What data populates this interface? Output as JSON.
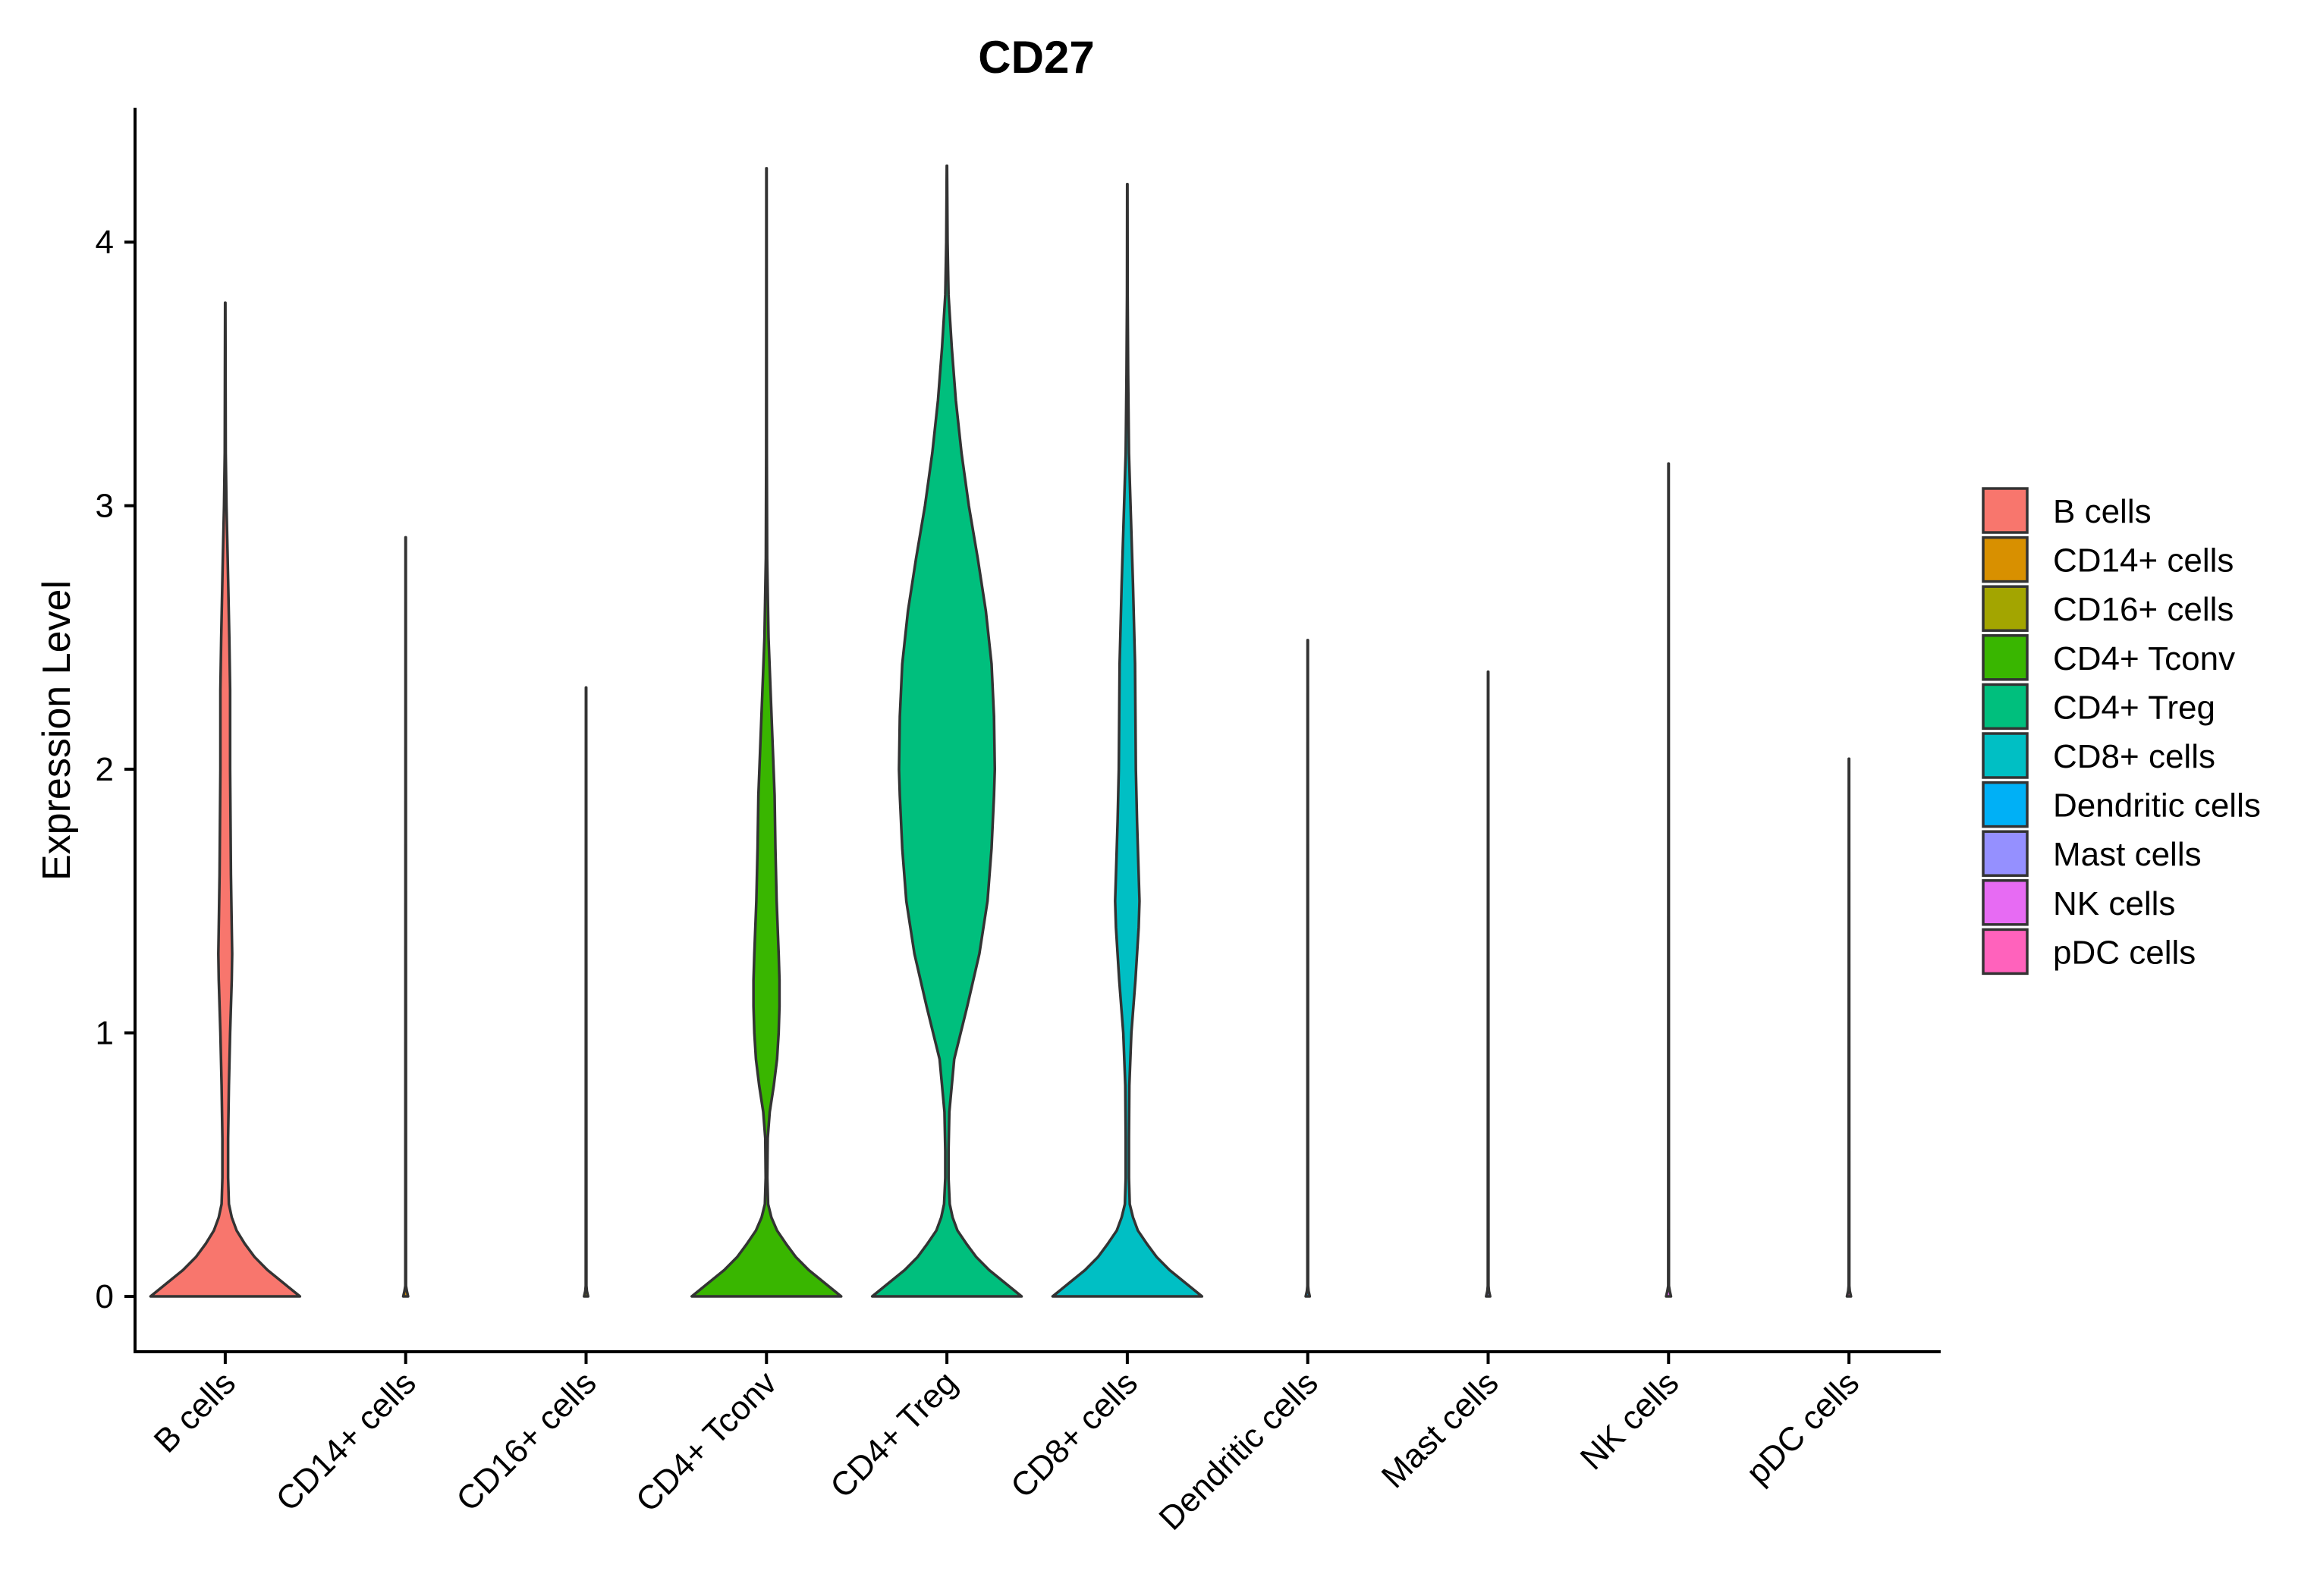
{
  "chart_data": {
    "type": "violin",
    "title": "CD27",
    "xlabel": "",
    "ylabel": "Expression Level",
    "ylim": [
      -0.21,
      4.51
    ],
    "yticks": [
      0,
      1,
      2,
      3,
      4
    ],
    "grid": false,
    "legend_position": "right",
    "categories": [
      "B cells",
      "CD14+ cells",
      "CD16+ cells",
      "CD4+ Tconv",
      "CD4+ Treg",
      "CD8+ cells",
      "Dendritic cells",
      "Mast cells",
      "NK cells",
      "pDC cells"
    ],
    "colors": [
      "#F8766D",
      "#D89000",
      "#A3A500",
      "#39B600",
      "#00BF7D",
      "#00BFC4",
      "#00B0F6",
      "#9590FF",
      "#E76BF3",
      "#FF62BC"
    ],
    "series": [
      {
        "name": "B cells",
        "max": 3.77,
        "profile": [
          [
            0,
            0.92
          ],
          [
            0.05,
            0.72
          ],
          [
            0.1,
            0.52
          ],
          [
            0.15,
            0.36
          ],
          [
            0.2,
            0.24
          ],
          [
            0.25,
            0.14
          ],
          [
            0.3,
            0.08
          ],
          [
            0.35,
            0.045
          ],
          [
            0.45,
            0.035
          ],
          [
            0.6,
            0.035
          ],
          [
            0.8,
            0.045
          ],
          [
            1.0,
            0.06
          ],
          [
            1.2,
            0.08
          ],
          [
            1.3,
            0.085
          ],
          [
            1.4,
            0.08
          ],
          [
            1.6,
            0.07
          ],
          [
            1.8,
            0.065
          ],
          [
            2.0,
            0.06
          ],
          [
            2.3,
            0.06
          ],
          [
            2.5,
            0.05
          ],
          [
            2.8,
            0.03
          ],
          [
            3.0,
            0.015
          ],
          [
            3.2,
            0.006
          ],
          [
            3.5,
            0.004
          ],
          [
            3.77,
            0.002
          ]
        ]
      },
      {
        "name": "CD14+ cells",
        "max": 2.88,
        "profile": [
          [
            0,
            0.03
          ],
          [
            0.02,
            0.015
          ],
          [
            0.04,
            0.004
          ],
          [
            2.88,
            0.002
          ]
        ]
      },
      {
        "name": "CD16+ cells",
        "max": 2.31,
        "profile": [
          [
            0,
            0.025
          ],
          [
            0.02,
            0.01
          ],
          [
            0.04,
            0.004
          ],
          [
            2.31,
            0.002
          ]
        ]
      },
      {
        "name": "CD4+ Tconv",
        "max": 4.28,
        "profile": [
          [
            0,
            0.92
          ],
          [
            0.05,
            0.72
          ],
          [
            0.1,
            0.52
          ],
          [
            0.15,
            0.36
          ],
          [
            0.2,
            0.24
          ],
          [
            0.25,
            0.13
          ],
          [
            0.3,
            0.06
          ],
          [
            0.35,
            0.02
          ],
          [
            0.45,
            0.01
          ],
          [
            0.6,
            0.015
          ],
          [
            0.7,
            0.04
          ],
          [
            0.8,
            0.09
          ],
          [
            0.9,
            0.13
          ],
          [
            1.0,
            0.15
          ],
          [
            1.1,
            0.16
          ],
          [
            1.2,
            0.16
          ],
          [
            1.3,
            0.15
          ],
          [
            1.5,
            0.125
          ],
          [
            1.7,
            0.11
          ],
          [
            1.9,
            0.1
          ],
          [
            2.1,
            0.075
          ],
          [
            2.3,
            0.05
          ],
          [
            2.5,
            0.025
          ],
          [
            2.8,
            0.008
          ],
          [
            3.2,
            0.004
          ],
          [
            3.7,
            0.003
          ],
          [
            4.28,
            0.002
          ]
        ]
      },
      {
        "name": "CD4+ Treg",
        "max": 4.29,
        "profile": [
          [
            0,
            0.92
          ],
          [
            0.05,
            0.72
          ],
          [
            0.1,
            0.52
          ],
          [
            0.15,
            0.36
          ],
          [
            0.2,
            0.24
          ],
          [
            0.25,
            0.13
          ],
          [
            0.3,
            0.07
          ],
          [
            0.35,
            0.035
          ],
          [
            0.45,
            0.02
          ],
          [
            0.55,
            0.02
          ],
          [
            0.7,
            0.03
          ],
          [
            0.9,
            0.09
          ],
          [
            1.1,
            0.25
          ],
          [
            1.3,
            0.4
          ],
          [
            1.5,
            0.5
          ],
          [
            1.7,
            0.55
          ],
          [
            1.9,
            0.58
          ],
          [
            2.0,
            0.59
          ],
          [
            2.2,
            0.58
          ],
          [
            2.4,
            0.55
          ],
          [
            2.6,
            0.48
          ],
          [
            2.8,
            0.38
          ],
          [
            3.0,
            0.27
          ],
          [
            3.2,
            0.18
          ],
          [
            3.4,
            0.11
          ],
          [
            3.6,
            0.06
          ],
          [
            3.8,
            0.02
          ],
          [
            4.0,
            0.008
          ],
          [
            4.29,
            0.002
          ]
        ]
      },
      {
        "name": "CD8+ cells",
        "max": 4.22,
        "profile": [
          [
            0,
            0.92
          ],
          [
            0.05,
            0.72
          ],
          [
            0.1,
            0.52
          ],
          [
            0.15,
            0.36
          ],
          [
            0.2,
            0.24
          ],
          [
            0.25,
            0.13
          ],
          [
            0.3,
            0.07
          ],
          [
            0.35,
            0.03
          ],
          [
            0.45,
            0.02
          ],
          [
            0.6,
            0.02
          ],
          [
            0.8,
            0.025
          ],
          [
            1.0,
            0.05
          ],
          [
            1.2,
            0.1
          ],
          [
            1.4,
            0.14
          ],
          [
            1.5,
            0.15
          ],
          [
            1.6,
            0.14
          ],
          [
            1.8,
            0.12
          ],
          [
            2.0,
            0.105
          ],
          [
            2.2,
            0.1
          ],
          [
            2.4,
            0.095
          ],
          [
            2.7,
            0.07
          ],
          [
            3.0,
            0.04
          ],
          [
            3.2,
            0.02
          ],
          [
            3.5,
            0.01
          ],
          [
            3.8,
            0.004
          ],
          [
            4.22,
            0.002
          ]
        ]
      },
      {
        "name": "Dendritic cells",
        "max": 2.49,
        "profile": [
          [
            0,
            0.025
          ],
          [
            0.02,
            0.01
          ],
          [
            0.04,
            0.004
          ],
          [
            2.49,
            0.002
          ]
        ]
      },
      {
        "name": "Mast cells",
        "max": 2.37,
        "profile": [
          [
            0,
            0.025
          ],
          [
            0.02,
            0.01
          ],
          [
            0.04,
            0.004
          ],
          [
            2.37,
            0.002
          ]
        ]
      },
      {
        "name": "NK cells",
        "max": 3.16,
        "profile": [
          [
            0,
            0.03
          ],
          [
            0.02,
            0.015
          ],
          [
            0.04,
            0.004
          ],
          [
            3.16,
            0.002
          ]
        ]
      },
      {
        "name": "pDC cells",
        "max": 2.04,
        "profile": [
          [
            0,
            0.025
          ],
          [
            0.02,
            0.01
          ],
          [
            0.04,
            0.004
          ],
          [
            2.04,
            0.002
          ]
        ]
      }
    ]
  }
}
